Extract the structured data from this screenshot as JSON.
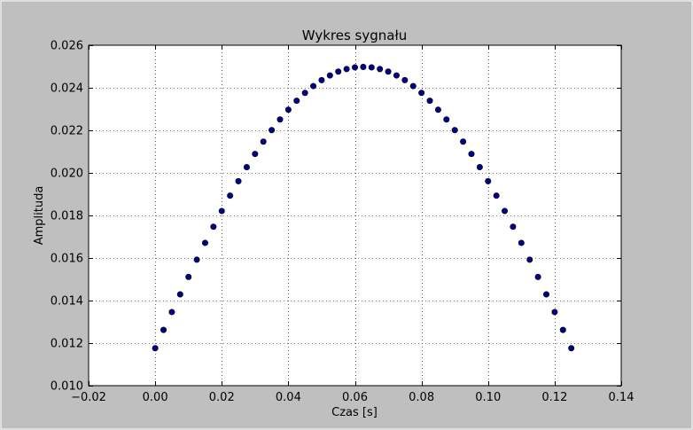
{
  "chart_data": {
    "type": "scatter",
    "title": "Wykres sygnału",
    "xlabel": "Czas [s]",
    "ylabel": "Amplituda",
    "xlim": [
      -0.02,
      0.14
    ],
    "ylim": [
      0.01,
      0.026
    ],
    "grid": true,
    "x_ticks": [
      -0.02,
      0.0,
      0.02,
      0.04,
      0.06,
      0.08,
      0.1,
      0.12,
      0.14
    ],
    "x_tick_labels": [
      "−0.02",
      "0.00",
      "0.02",
      "0.04",
      "0.06",
      "0.08",
      "0.10",
      "0.12",
      "0.14"
    ],
    "y_ticks": [
      0.01,
      0.012,
      0.014,
      0.016,
      0.018,
      0.02,
      0.022,
      0.024,
      0.026
    ],
    "y_tick_labels": [
      "0.010",
      "0.012",
      "0.014",
      "0.016",
      "0.018",
      "0.020",
      "0.022",
      "0.024",
      "0.026"
    ],
    "marker_color": "#00008b",
    "series": [
      {
        "x": [
          0.0,
          0.0025,
          0.005,
          0.0075,
          0.01,
          0.0125,
          0.015,
          0.0175,
          0.02,
          0.0225,
          0.025,
          0.0275,
          0.03,
          0.0325,
          0.035,
          0.0375,
          0.04,
          0.0425,
          0.045,
          0.0475,
          0.05,
          0.0525,
          0.055,
          0.0575,
          0.06,
          0.0625,
          0.065,
          0.0675,
          0.07,
          0.0725,
          0.075,
          0.0775,
          0.08,
          0.0825,
          0.085,
          0.0875,
          0.09,
          0.0925,
          0.095,
          0.0975,
          0.1,
          0.1025,
          0.105,
          0.1075,
          0.11,
          0.1125,
          0.115,
          0.1175,
          0.12,
          0.1225,
          0.125
        ],
        "y": [
          0.01176,
          0.01262,
          0.01346,
          0.01429,
          0.01511,
          0.01592,
          0.01671,
          0.01747,
          0.01821,
          0.01893,
          0.01961,
          0.02027,
          0.02089,
          0.02147,
          0.02201,
          0.02251,
          0.02297,
          0.02339,
          0.02376,
          0.02408,
          0.02436,
          0.02458,
          0.02476,
          0.02488,
          0.02496,
          0.02498,
          0.02496,
          0.02488,
          0.02476,
          0.02458,
          0.02436,
          0.02408,
          0.02376,
          0.02339,
          0.02297,
          0.02251,
          0.02201,
          0.02147,
          0.02089,
          0.02027,
          0.01961,
          0.01893,
          0.01821,
          0.01747,
          0.01671,
          0.01592,
          0.01511,
          0.01429,
          0.01346,
          0.01262,
          0.01176
        ]
      }
    ]
  }
}
